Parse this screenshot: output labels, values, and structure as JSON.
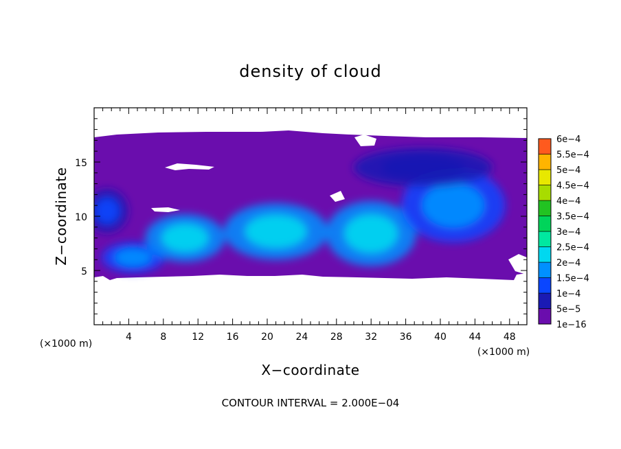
{
  "chart_data": {
    "type": "heatmap",
    "title": "density of cloud",
    "xlabel": "X−coordinate",
    "ylabel": "Z−coordinate",
    "x_unit_label": "(×1000 m)",
    "x_unit_label_left": "(×1000 m)",
    "xlim": [
      0,
      50
    ],
    "ylim": [
      0,
      20
    ],
    "x_ticks": [
      4,
      8,
      12,
      16,
      20,
      24,
      28,
      32,
      36,
      40,
      44,
      48
    ],
    "x_tick_labels": [
      "4",
      "8",
      "12",
      "16",
      "20",
      "24",
      "28",
      "32",
      "36",
      "40",
      "44",
      "48"
    ],
    "y_ticks": [
      5,
      10,
      15
    ],
    "y_tick_labels": [
      "5",
      "10",
      "15"
    ],
    "contour_interval_text": "CONTOUR INTERVAL = 2.000E−04",
    "colorbar": {
      "levels": [
        "1e−16",
        "5e−5",
        "1e−4",
        "1.5e−4",
        "2e−4",
        "2.5e−4",
        "3e−4",
        "3.5e−4",
        "4e−4",
        "4.5e−4",
        "5e−4",
        "5.5e−4",
        "6e−4"
      ],
      "colors": [
        "#6a0dad",
        "#1a1ab4",
        "#0a46ff",
        "#0090ff",
        "#00d8f0",
        "#00e8a0",
        "#00d45a",
        "#22c322",
        "#a8dc00",
        "#e8e800",
        "#ffb400",
        "#ff5a1e",
        "#f07878"
      ]
    },
    "cloud_region": {
      "z_base_approx": 4.2,
      "z_top_approx": 17.2,
      "background_value": "1e−16",
      "max_value_approx": "1.5e−4"
    },
    "blobs": [
      {
        "x": 4.5,
        "z": 6.2,
        "rx": 3.6,
        "rz": 1.4,
        "level": 3
      },
      {
        "x": 10.5,
        "z": 8.0,
        "rx": 4.6,
        "rz": 2.2,
        "level": 4
      },
      {
        "x": 21.0,
        "z": 8.6,
        "rx": 6.0,
        "rz": 2.6,
        "level": 4
      },
      {
        "x": 32.0,
        "z": 8.4,
        "rx": 5.2,
        "rz": 3.0,
        "level": 4
      },
      {
        "x": 41.5,
        "z": 11.0,
        "rx": 6.0,
        "rz": 3.4,
        "level": 3
      },
      {
        "x": 1.5,
        "z": 10.5,
        "rx": 2.4,
        "rz": 2.0,
        "level": 2
      },
      {
        "x": 38.0,
        "z": 14.5,
        "rx": 8.0,
        "rz": 1.8,
        "level": 1
      }
    ]
  }
}
